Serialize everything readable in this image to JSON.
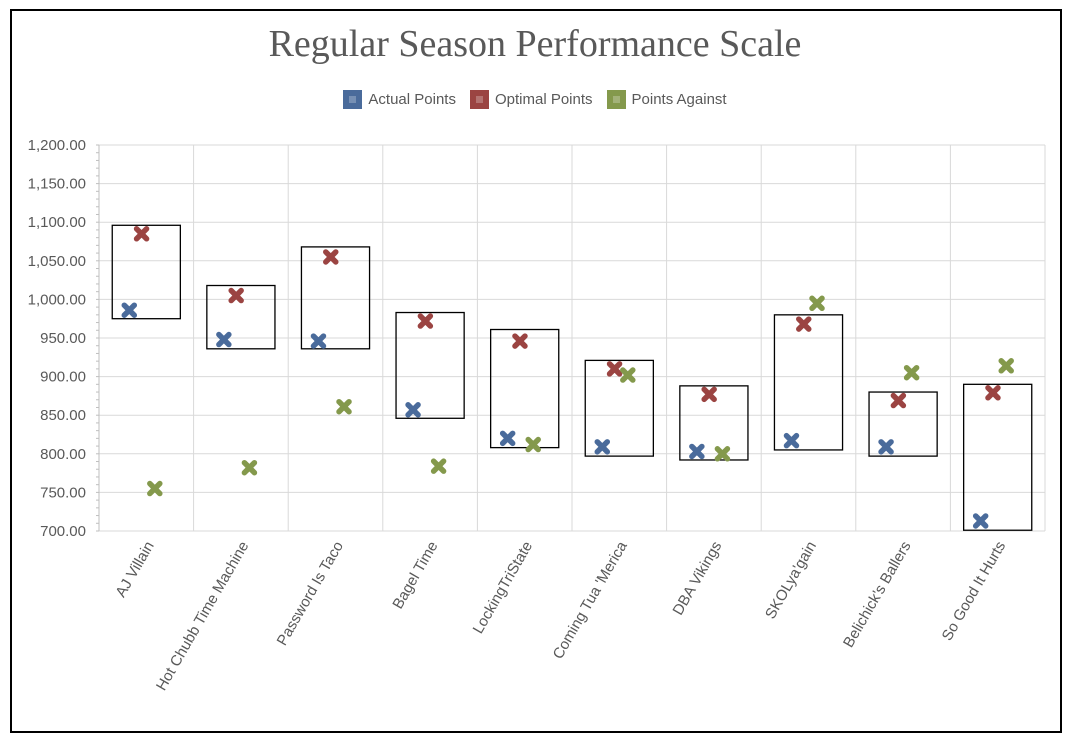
{
  "chart_data": {
    "type": "scatter",
    "title": "Regular Season Performance Scale",
    "xlabel": "",
    "ylabel": "",
    "ylim": [
      700,
      1200
    ],
    "ytick_step": 50,
    "ytick_labels": [
      "700.00",
      "750.00",
      "800.00",
      "850.00",
      "900.00",
      "950.00",
      "1,000.00",
      "1,050.00",
      "1,100.00",
      "1,150.00",
      "1,200.00"
    ],
    "grid": true,
    "legend_position": "top-center",
    "categories": [
      "AJ Villain",
      "Hot Chubb Time Machine",
      "Password Is Taco",
      "Bagel Time",
      "LockingTriState",
      "Coming Tua 'Merica",
      "DBA Vikings",
      "SKOLya'gain",
      "Belichick's Ballers",
      "So Good It Hurts"
    ],
    "series": [
      {
        "name": "Actual Points",
        "color": "#4a6b9b",
        "values": [
          986,
          948,
          946,
          857,
          820,
          809,
          803,
          817,
          809,
          713
        ]
      },
      {
        "name": "Optimal Points",
        "color": "#9b4442",
        "values": [
          1085,
          1005,
          1055,
          972,
          946,
          910,
          877,
          968,
          869,
          879
        ]
      },
      {
        "name": "Points Against",
        "color": "#84994c",
        "values": [
          755,
          782,
          861,
          784,
          812,
          902,
          800,
          995,
          905,
          914
        ]
      }
    ],
    "range_boxes": [
      {
        "low": 975,
        "high": 1096
      },
      {
        "low": 936,
        "high": 1018
      },
      {
        "low": 936,
        "high": 1068
      },
      {
        "low": 846,
        "high": 983
      },
      {
        "low": 808,
        "high": 961
      },
      {
        "low": 797,
        "high": 921
      },
      {
        "low": 792,
        "high": 888
      },
      {
        "low": 805,
        "high": 980
      },
      {
        "low": 797,
        "high": 880
      },
      {
        "low": 701,
        "high": 890
      }
    ]
  }
}
